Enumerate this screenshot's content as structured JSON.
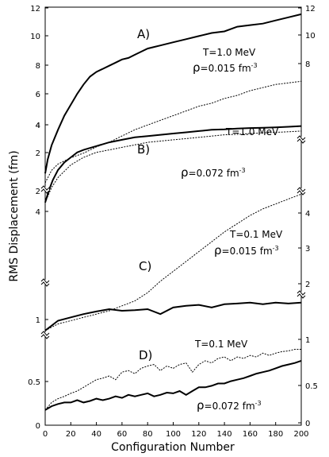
{
  "chart_data": {
    "type": "line",
    "title": "",
    "xlabel": "Configuration Number",
    "ylabel": "RMS Displacement (fm)",
    "xlim": [
      0,
      200
    ],
    "x_ticks": [
      "0",
      "20",
      "40",
      "60",
      "80",
      "100",
      "120",
      "140",
      "160",
      "180",
      "200"
    ],
    "panels": [
      {
        "label": "A)",
        "ylim": [
          1,
          12
        ],
        "left_ticks": [
          "2",
          "4",
          "6",
          "8",
          "10",
          "12"
        ],
        "right_ticks": [
          "8",
          "10",
          "12"
        ],
        "annotation": {
          "temperature": "T=1.0 MeV",
          "rho_symbol": "ρ",
          "density": "=0.015 fm",
          "exponent": "-3"
        },
        "series": [
          {
            "style": "solid",
            "points": [
              [
                0,
                1.5
              ],
              [
                2,
                2.4
              ],
              [
                5,
                3.3
              ],
              [
                10,
                4.3
              ],
              [
                15,
                5.2
              ],
              [
                20,
                5.9
              ],
              [
                25,
                6.6
              ],
              [
                30,
                7.2
              ],
              [
                35,
                7.7
              ],
              [
                40,
                8.0
              ],
              [
                45,
                8.2
              ],
              [
                50,
                8.4
              ],
              [
                55,
                8.6
              ],
              [
                60,
                8.8
              ],
              [
                65,
                8.9
              ],
              [
                70,
                9.1
              ],
              [
                75,
                9.3
              ],
              [
                80,
                9.5
              ],
              [
                85,
                9.6
              ],
              [
                90,
                9.7
              ],
              [
                100,
                9.9
              ],
              [
                110,
                10.1
              ],
              [
                120,
                10.3
              ],
              [
                130,
                10.5
              ],
              [
                140,
                10.6
              ],
              [
                150,
                10.9
              ],
              [
                160,
                11.0
              ],
              [
                170,
                11.1
              ],
              [
                180,
                11.3
              ],
              [
                190,
                11.5
              ],
              [
                200,
                11.7
              ]
            ]
          },
          {
            "style": "dashed",
            "points": [
              [
                0,
                0.9
              ],
              [
                5,
                1.7
              ],
              [
                10,
                2.1
              ],
              [
                20,
                2.5
              ],
              [
                30,
                2.8
              ],
              [
                40,
                3.2
              ],
              [
                50,
                3.5
              ],
              [
                60,
                3.9
              ],
              [
                70,
                4.3
              ],
              [
                80,
                4.6
              ],
              [
                90,
                4.9
              ],
              [
                100,
                5.2
              ],
              [
                110,
                5.5
              ],
              [
                120,
                5.8
              ],
              [
                130,
                6.0
              ],
              [
                140,
                6.3
              ],
              [
                150,
                6.5
              ],
              [
                160,
                6.8
              ],
              [
                170,
                7.0
              ],
              [
                180,
                7.2
              ],
              [
                190,
                7.3
              ],
              [
                200,
                7.4
              ]
            ]
          }
        ]
      },
      {
        "label": "B)",
        "ylim": [
          0.9,
          4.1
        ],
        "left_ticks": [
          "2",
          "4"
        ],
        "right_ticks": [],
        "annotation": {
          "temperature": "T=1.0 MeV",
          "rho_symbol": "ρ",
          "density": "=0.072 fm",
          "exponent": "-3"
        },
        "series": [
          {
            "style": "solid",
            "points": [
              [
                0,
                1.0
              ],
              [
                3,
                1.5
              ],
              [
                6,
                1.9
              ],
              [
                10,
                2.3
              ],
              [
                15,
                2.6
              ],
              [
                20,
                2.8
              ],
              [
                25,
                3.0
              ],
              [
                30,
                3.1
              ],
              [
                40,
                3.25
              ],
              [
                50,
                3.4
              ],
              [
                60,
                3.5
              ],
              [
                70,
                3.6
              ],
              [
                80,
                3.65
              ],
              [
                90,
                3.7
              ],
              [
                100,
                3.75
              ],
              [
                110,
                3.8
              ],
              [
                120,
                3.85
              ],
              [
                130,
                3.9
              ],
              [
                140,
                3.92
              ],
              [
                150,
                3.95
              ],
              [
                160,
                3.97
              ],
              [
                170,
                3.98
              ],
              [
                180,
                4.0
              ],
              [
                190,
                4.02
              ],
              [
                200,
                4.05
              ]
            ]
          },
          {
            "style": "dashed",
            "points": [
              [
                0,
                1.0
              ],
              [
                5,
                1.6
              ],
              [
                10,
                2.0
              ],
              [
                20,
                2.5
              ],
              [
                30,
                2.8
              ],
              [
                40,
                3.0
              ],
              [
                50,
                3.1
              ],
              [
                60,
                3.2
              ],
              [
                70,
                3.3
              ],
              [
                80,
                3.4
              ],
              [
                90,
                3.45
              ],
              [
                100,
                3.5
              ],
              [
                110,
                3.55
              ],
              [
                120,
                3.6
              ],
              [
                130,
                3.65
              ],
              [
                140,
                3.7
              ],
              [
                150,
                3.72
              ],
              [
                160,
                3.75
              ],
              [
                170,
                3.78
              ],
              [
                180,
                3.8
              ],
              [
                190,
                3.82
              ],
              [
                200,
                3.85
              ]
            ]
          }
        ]
      },
      {
        "label": "C)",
        "ylim": [
          0.6,
          5.0
        ],
        "left_ticks": [
          "4"
        ],
        "right_ticks": [
          "2",
          "3",
          "4"
        ],
        "annotation": {
          "temperature": "T=0.1 MeV",
          "rho_symbol": "ρ",
          "density": "=0.015 fm",
          "exponent": "-3"
        },
        "series": [
          {
            "style": "solid",
            "points": [
              [
                0,
                0.7
              ],
              [
                10,
                1.0
              ],
              [
                20,
                1.1
              ],
              [
                30,
                1.2
              ],
              [
                40,
                1.28
              ],
              [
                50,
                1.35
              ],
              [
                60,
                1.3
              ],
              [
                70,
                1.32
              ],
              [
                80,
                1.35
              ],
              [
                90,
                1.2
              ],
              [
                100,
                1.4
              ],
              [
                110,
                1.45
              ],
              [
                120,
                1.48
              ],
              [
                130,
                1.4
              ],
              [
                140,
                1.5
              ],
              [
                150,
                1.52
              ],
              [
                160,
                1.55
              ],
              [
                170,
                1.5
              ],
              [
                180,
                1.55
              ],
              [
                190,
                1.52
              ],
              [
                200,
                1.55
              ]
            ]
          },
          {
            "style": "dashed",
            "points": [
              [
                0,
                0.7
              ],
              [
                10,
                0.9
              ],
              [
                20,
                1.0
              ],
              [
                30,
                1.1
              ],
              [
                40,
                1.2
              ],
              [
                50,
                1.3
              ],
              [
                60,
                1.45
              ],
              [
                70,
                1.6
              ],
              [
                80,
                1.85
              ],
              [
                90,
                2.2
              ],
              [
                100,
                2.5
              ],
              [
                110,
                2.8
              ],
              [
                120,
                3.1
              ],
              [
                130,
                3.4
              ],
              [
                140,
                3.7
              ],
              [
                150,
                3.95
              ],
              [
                160,
                4.2
              ],
              [
                170,
                4.4
              ],
              [
                180,
                4.55
              ],
              [
                190,
                4.7
              ],
              [
                200,
                4.85
              ]
            ]
          }
        ]
      },
      {
        "label": "D)",
        "ylim": [
          0,
          1.1
        ],
        "left_ticks": [
          "0",
          "0.5",
          "1"
        ],
        "right_ticks": [
          "0",
          "0.5",
          "1"
        ],
        "annotation": {
          "temperature": "T=0.1 MeV",
          "rho_symbol": "ρ",
          "density": "=0.072 fm",
          "exponent": "-3"
        },
        "series": [
          {
            "style": "solid",
            "points": [
              [
                0,
                0.2
              ],
              [
                5,
                0.25
              ],
              [
                10,
                0.28
              ],
              [
                15,
                0.3
              ],
              [
                20,
                0.3
              ],
              [
                25,
                0.33
              ],
              [
                30,
                0.3
              ],
              [
                35,
                0.32
              ],
              [
                40,
                0.35
              ],
              [
                45,
                0.33
              ],
              [
                50,
                0.35
              ],
              [
                55,
                0.38
              ],
              [
                60,
                0.36
              ],
              [
                65,
                0.4
              ],
              [
                70,
                0.38
              ],
              [
                75,
                0.4
              ],
              [
                80,
                0.42
              ],
              [
                85,
                0.38
              ],
              [
                90,
                0.4
              ],
              [
                95,
                0.43
              ],
              [
                100,
                0.42
              ],
              [
                105,
                0.45
              ],
              [
                110,
                0.4
              ],
              [
                115,
                0.45
              ],
              [
                120,
                0.5
              ],
              [
                125,
                0.5
              ],
              [
                130,
                0.52
              ],
              [
                135,
                0.55
              ],
              [
                140,
                0.55
              ],
              [
                145,
                0.58
              ],
              [
                150,
                0.6
              ],
              [
                155,
                0.62
              ],
              [
                160,
                0.65
              ],
              [
                165,
                0.68
              ],
              [
                170,
                0.7
              ],
              [
                175,
                0.72
              ],
              [
                180,
                0.75
              ],
              [
                185,
                0.78
              ],
              [
                190,
                0.8
              ],
              [
                195,
                0.82
              ],
              [
                200,
                0.85
              ]
            ]
          },
          {
            "style": "dashed",
            "points": [
              [
                0,
                0.2
              ],
              [
                5,
                0.3
              ],
              [
                10,
                0.35
              ],
              [
                15,
                0.38
              ],
              [
                20,
                0.42
              ],
              [
                25,
                0.45
              ],
              [
                30,
                0.5
              ],
              [
                35,
                0.55
              ],
              [
                40,
                0.6
              ],
              [
                45,
                0.62
              ],
              [
                50,
                0.65
              ],
              [
                55,
                0.6
              ],
              [
                60,
                0.7
              ],
              [
                65,
                0.72
              ],
              [
                70,
                0.68
              ],
              [
                75,
                0.75
              ],
              [
                80,
                0.78
              ],
              [
                85,
                0.8
              ],
              [
                90,
                0.72
              ],
              [
                95,
                0.78
              ],
              [
                100,
                0.75
              ],
              [
                105,
                0.8
              ],
              [
                110,
                0.82
              ],
              [
                115,
                0.7
              ],
              [
                120,
                0.8
              ],
              [
                125,
                0.85
              ],
              [
                130,
                0.82
              ],
              [
                135,
                0.88
              ],
              [
                140,
                0.9
              ],
              [
                145,
                0.85
              ],
              [
                150,
                0.9
              ],
              [
                155,
                0.88
              ],
              [
                160,
                0.92
              ],
              [
                165,
                0.9
              ],
              [
                170,
                0.95
              ],
              [
                175,
                0.92
              ],
              [
                180,
                0.95
              ],
              [
                185,
                0.97
              ],
              [
                190,
                0.98
              ],
              [
                195,
                1.0
              ],
              [
                200,
                1.0
              ]
            ]
          }
        ]
      }
    ]
  }
}
